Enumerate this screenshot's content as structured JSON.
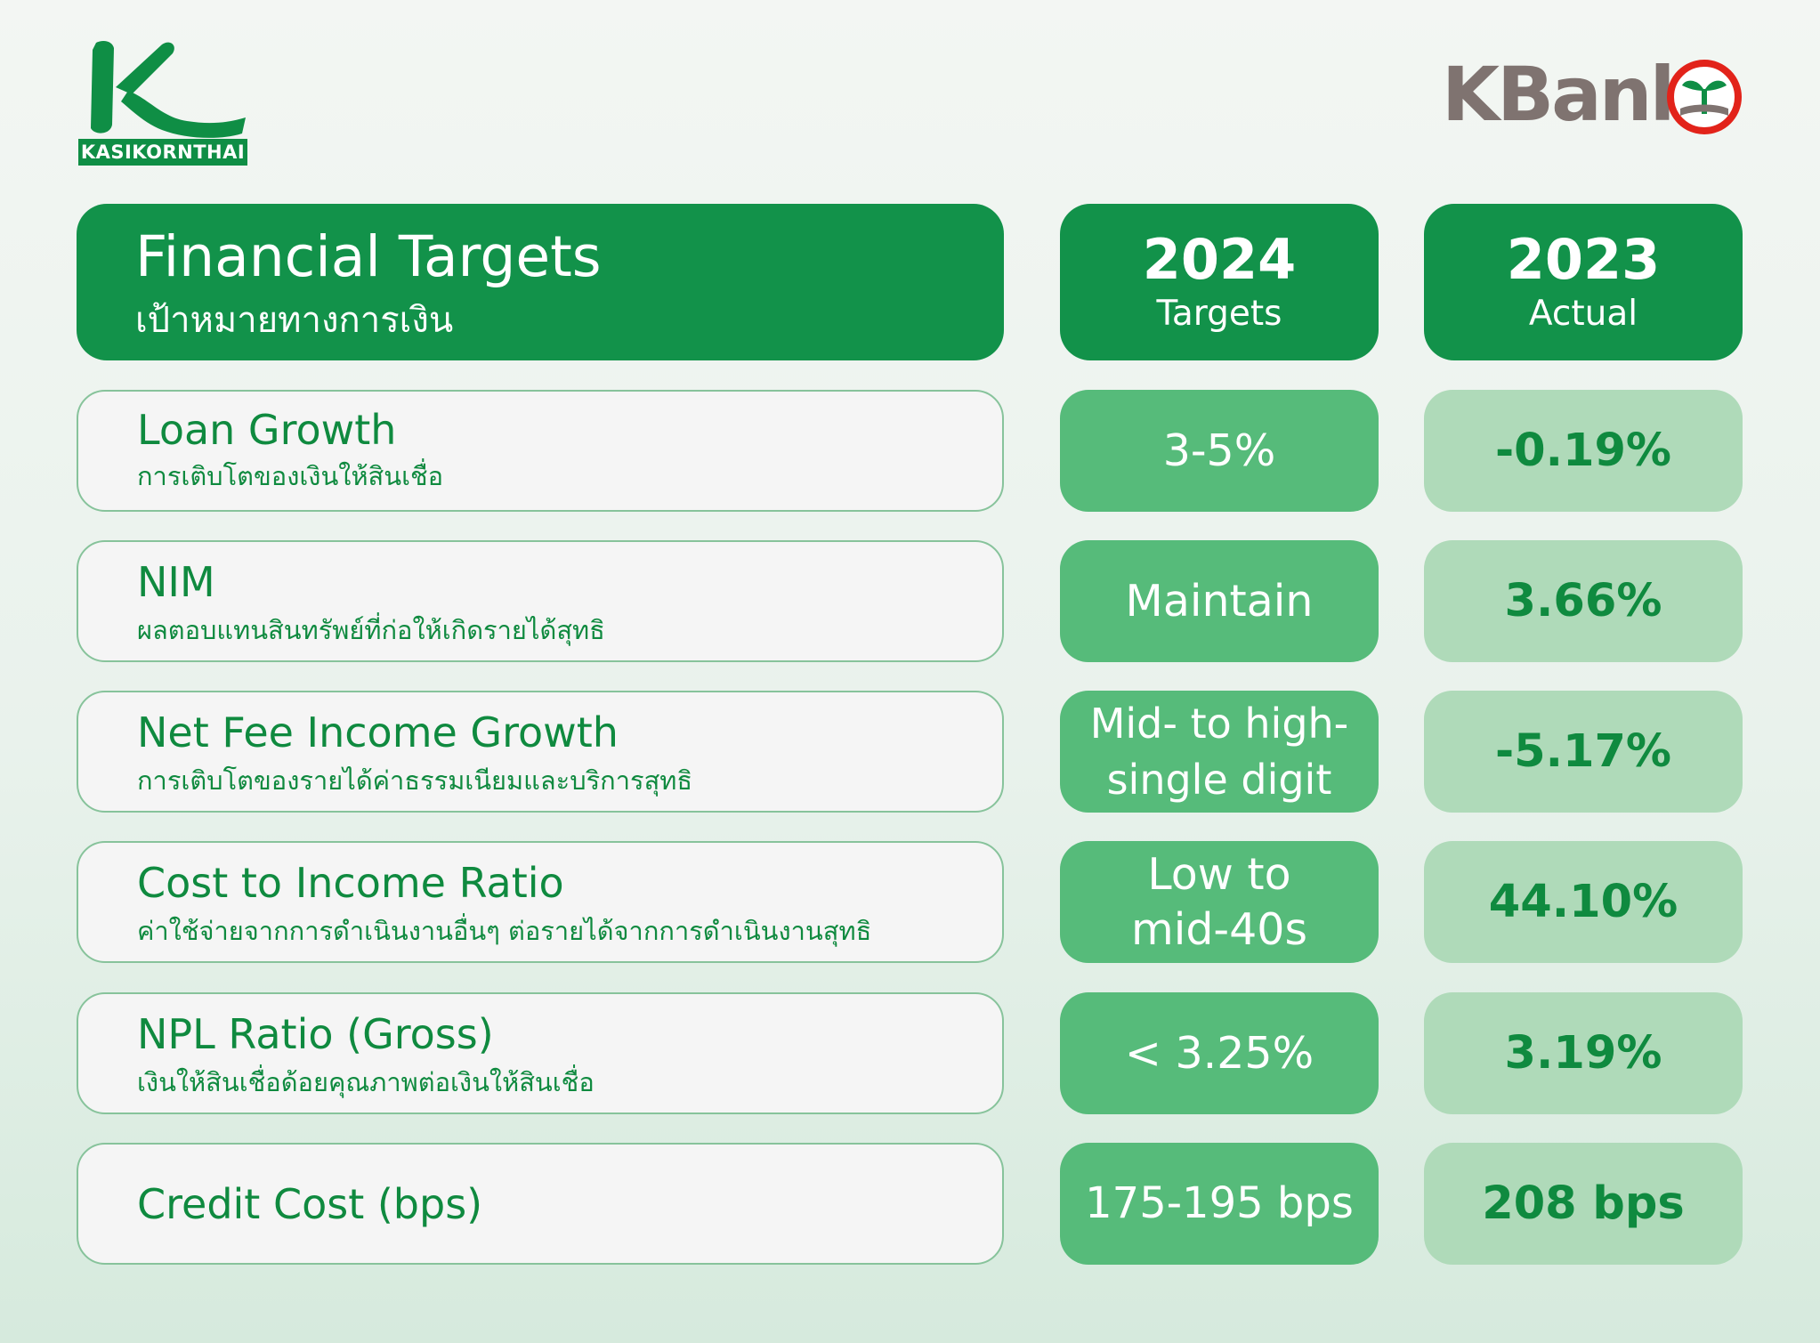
{
  "logos": {
    "kasikornthai_text": "KASIKORNTHAI",
    "kbank_text": "KBank"
  },
  "colors": {
    "brand_green": "#12924a",
    "target_green": "#56bb7a",
    "actual_green": "#afdab9",
    "label_text": "#0f8a3f",
    "kbank_grey": "#7f7370",
    "kbank_red": "#e2231a"
  },
  "header": {
    "title": "Financial Targets",
    "subtitle_th": "เป้าหมายทางการเงิน",
    "col_2024": {
      "year": "2024",
      "label": "Targets"
    },
    "col_2023": {
      "year": "2023",
      "label": "Actual"
    }
  },
  "rows": [
    {
      "label": "Loan Growth",
      "label_th": "การเติบโตของเงินให้สินเชื่อ",
      "target_lines": [
        "3-5%"
      ],
      "actual": "-0.19%"
    },
    {
      "label": "NIM",
      "label_th": "ผลตอบแทนสินทรัพย์ที่ก่อให้เกิดรายได้สุทธิ",
      "target_lines": [
        "Maintain"
      ],
      "actual": "3.66%"
    },
    {
      "label": "Net Fee Income Growth",
      "label_th": "การเติบโตของรายได้ค่าธรรมเนียมและบริการสุทธิ",
      "target_lines": [
        "Mid- to high-",
        "single digit"
      ],
      "actual": "-5.17%"
    },
    {
      "label": "Cost to Income Ratio",
      "label_th": "ค่าใช้จ่ายจากการดำเนินงานอื่นๆ ต่อรายได้จากการดำเนินงานสุทธิ",
      "target_lines": [
        "Low to",
        "mid-40s"
      ],
      "actual": "44.10%"
    },
    {
      "label": "NPL Ratio (Gross)",
      "label_th": "เงินให้สินเชื่อด้อยคุณภาพต่อเงินให้สินเชื่อ",
      "target_lines": [
        "< 3.25%"
      ],
      "actual": "3.19%"
    },
    {
      "label": "Credit Cost (bps)",
      "label_th": "",
      "target_lines": [
        "175-195 bps"
      ],
      "actual": "208 bps"
    }
  ]
}
